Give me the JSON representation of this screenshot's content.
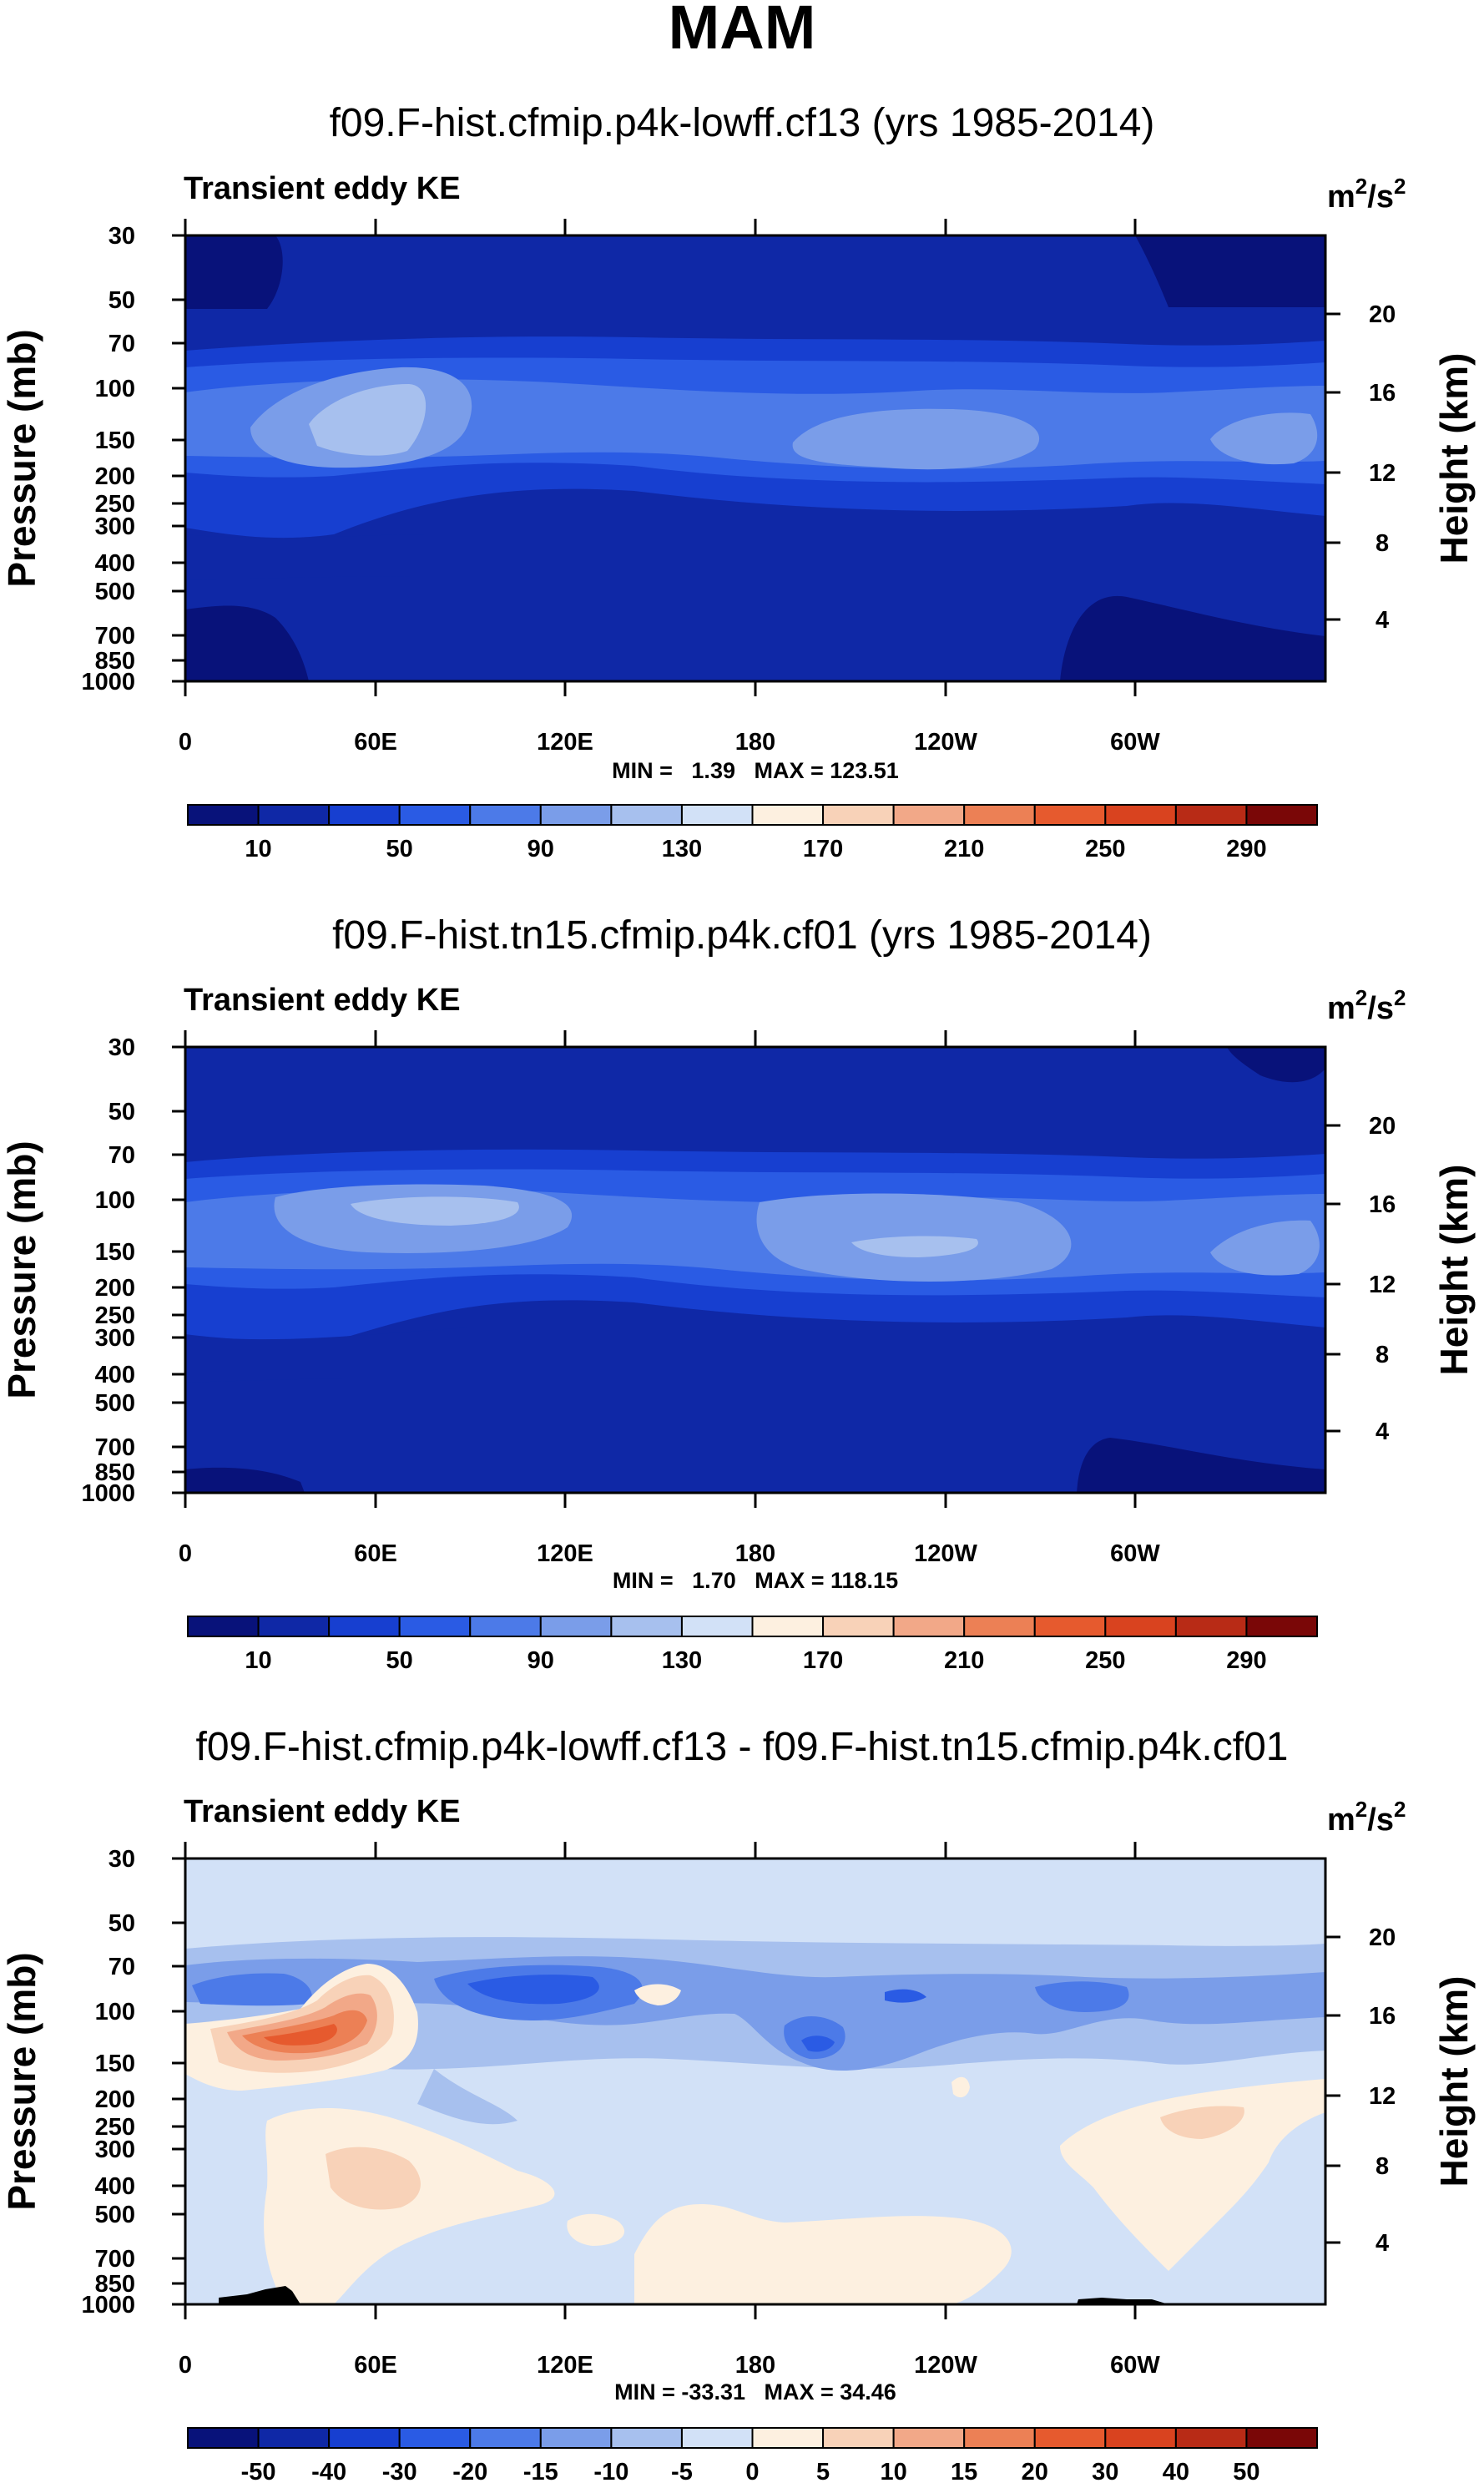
{
  "figure": {
    "title": "MAM"
  },
  "chart_data": [
    {
      "type": "heatmap",
      "subtitle": "f09.F-hist.cfmip.p4k-lowff.cf13 (yrs 1985-2014)",
      "field_label": "Transient eddy KE",
      "units_base": "m",
      "units_exp1": "2",
      "units_mid": "/s",
      "units_exp2": "2",
      "ylabel_left": "Pressure (mb)",
      "ylabel_right": "Height (km)",
      "x_ticks": [
        "0",
        "60E",
        "120E",
        "180",
        "120W",
        "60W"
      ],
      "pressure_ticks": [
        "30",
        "50",
        "70",
        "100",
        "150",
        "200",
        "250",
        "300",
        "400",
        "500",
        "700",
        "850",
        "1000"
      ],
      "height_ticks": [
        "20",
        "16",
        "12",
        "8",
        "4"
      ],
      "min_max_label": "MIN =   1.39   MAX = 123.51",
      "min": 1.39,
      "max": 123.51,
      "colorbar_labels": [
        "10",
        "50",
        "90",
        "130",
        "170",
        "210",
        "250",
        "290"
      ],
      "colorbar_colors": [
        "#08127a",
        "#0f28a6",
        "#173fd0",
        "#2a5be4",
        "#4c7ae8",
        "#7a9de9",
        "#a7c0ee",
        "#d2e1f7",
        "#fdf0e0",
        "#f8d2b8",
        "#f2a888",
        "#ec8055",
        "#e65a2e",
        "#d9431f",
        "#b82b16",
        "#7a0707"
      ]
    },
    {
      "type": "heatmap",
      "subtitle": "f09.F-hist.tn15.cfmip.p4k.cf01 (yrs 1985-2014)",
      "field_label": "Transient eddy KE",
      "units_base": "m",
      "units_exp1": "2",
      "units_mid": "/s",
      "units_exp2": "2",
      "ylabel_left": "Pressure (mb)",
      "ylabel_right": "Height (km)",
      "x_ticks": [
        "0",
        "60E",
        "120E",
        "180",
        "120W",
        "60W"
      ],
      "pressure_ticks": [
        "30",
        "50",
        "70",
        "100",
        "150",
        "200",
        "250",
        "300",
        "400",
        "500",
        "700",
        "850",
        "1000"
      ],
      "height_ticks": [
        "20",
        "16",
        "12",
        "8",
        "4"
      ],
      "min_max_label": "MIN =   1.70   MAX = 118.15",
      "min": 1.7,
      "max": 118.15,
      "colorbar_labels": [
        "10",
        "50",
        "90",
        "130",
        "170",
        "210",
        "250",
        "290"
      ],
      "colorbar_colors": [
        "#08127a",
        "#0f28a6",
        "#173fd0",
        "#2a5be4",
        "#4c7ae8",
        "#7a9de9",
        "#a7c0ee",
        "#d2e1f7",
        "#fdf0e0",
        "#f8d2b8",
        "#f2a888",
        "#ec8055",
        "#e65a2e",
        "#d9431f",
        "#b82b16",
        "#7a0707"
      ]
    },
    {
      "type": "heatmap",
      "subtitle": "f09.F-hist.cfmip.p4k-lowff.cf13 - f09.F-hist.tn15.cfmip.p4k.cf01",
      "field_label": "Transient eddy KE",
      "units_base": "m",
      "units_exp1": "2",
      "units_mid": "/s",
      "units_exp2": "2",
      "ylabel_left": "Pressure (mb)",
      "ylabel_right": "Height (km)",
      "x_ticks": [
        "0",
        "60E",
        "120E",
        "180",
        "120W",
        "60W"
      ],
      "pressure_ticks": [
        "30",
        "50",
        "70",
        "100",
        "150",
        "200",
        "250",
        "300",
        "400",
        "500",
        "700",
        "850",
        "1000"
      ],
      "height_ticks": [
        "20",
        "16",
        "12",
        "8",
        "4"
      ],
      "min_max_label": "MIN = -33.31   MAX = 34.46",
      "min": -33.31,
      "max": 34.46,
      "colorbar_labels": [
        "-50",
        "-40",
        "-30",
        "-20",
        "-15",
        "-10",
        "-5",
        "0",
        "5",
        "10",
        "15",
        "20",
        "30",
        "40",
        "50"
      ],
      "colorbar_colors": [
        "#08127a",
        "#0f28a6",
        "#173fd0",
        "#2a5be4",
        "#4c7ae8",
        "#7a9de9",
        "#a7c0ee",
        "#d2e1f7",
        "#fdf0e0",
        "#f8d2b8",
        "#f2a888",
        "#ec8055",
        "#e65a2e",
        "#d9431f",
        "#b82b16",
        "#7a0707"
      ]
    }
  ]
}
